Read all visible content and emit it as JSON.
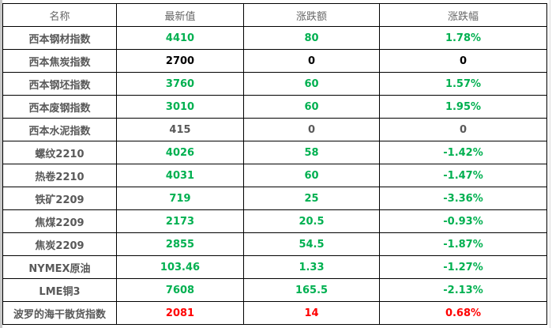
{
  "colors": {
    "green": "#00b050",
    "red": "#ff0000",
    "black": "#000000",
    "gray": "#595959"
  },
  "headers": [
    "名称",
    "最新值",
    "涨跌额",
    "涨跌幅"
  ],
  "rows": [
    {
      "name": "西本钢材指数",
      "value": "4410",
      "change": "80",
      "pct": "1.78%",
      "color": "green"
    },
    {
      "name": "西本焦炭指数",
      "value": "2700",
      "change": "0",
      "pct": "0",
      "color": "black"
    },
    {
      "name": "西本钢坯指数",
      "value": "3760",
      "change": "60",
      "pct": "1.57%",
      "color": "green"
    },
    {
      "name": "西本废钢指数",
      "value": "3010",
      "change": "60",
      "pct": "1.95%",
      "color": "green"
    },
    {
      "name": "西本水泥指数",
      "value": "415",
      "change": "0",
      "pct": "0",
      "color": "gray"
    },
    {
      "name": "螺纹2210",
      "value": "4026",
      "change": "58",
      "pct": "-1.42%",
      "color": "green"
    },
    {
      "name": "热卷2210",
      "value": "4031",
      "change": "60",
      "pct": "-1.47%",
      "color": "green"
    },
    {
      "name": "铁矿2209",
      "value": "719",
      "change": "25",
      "pct": "-3.36%",
      "color": "green"
    },
    {
      "name": "焦煤2209",
      "value": "2173",
      "change": "20.5",
      "pct": "-0.93%",
      "color": "green"
    },
    {
      "name": "焦炭2209",
      "value": "2855",
      "change": "54.5",
      "pct": "-1.87%",
      "color": "green"
    },
    {
      "name": "NYMEX原油",
      "value": "103.46",
      "change": "1.33",
      "pct": "-1.27%",
      "color": "green"
    },
    {
      "name": "LME铜3",
      "value": "7608",
      "change": "165.5",
      "pct": "-2.13%",
      "color": "green"
    },
    {
      "name": "波罗的海干散货指数",
      "value": "2081",
      "change": "14",
      "pct": "0.68%",
      "color": "red"
    }
  ]
}
